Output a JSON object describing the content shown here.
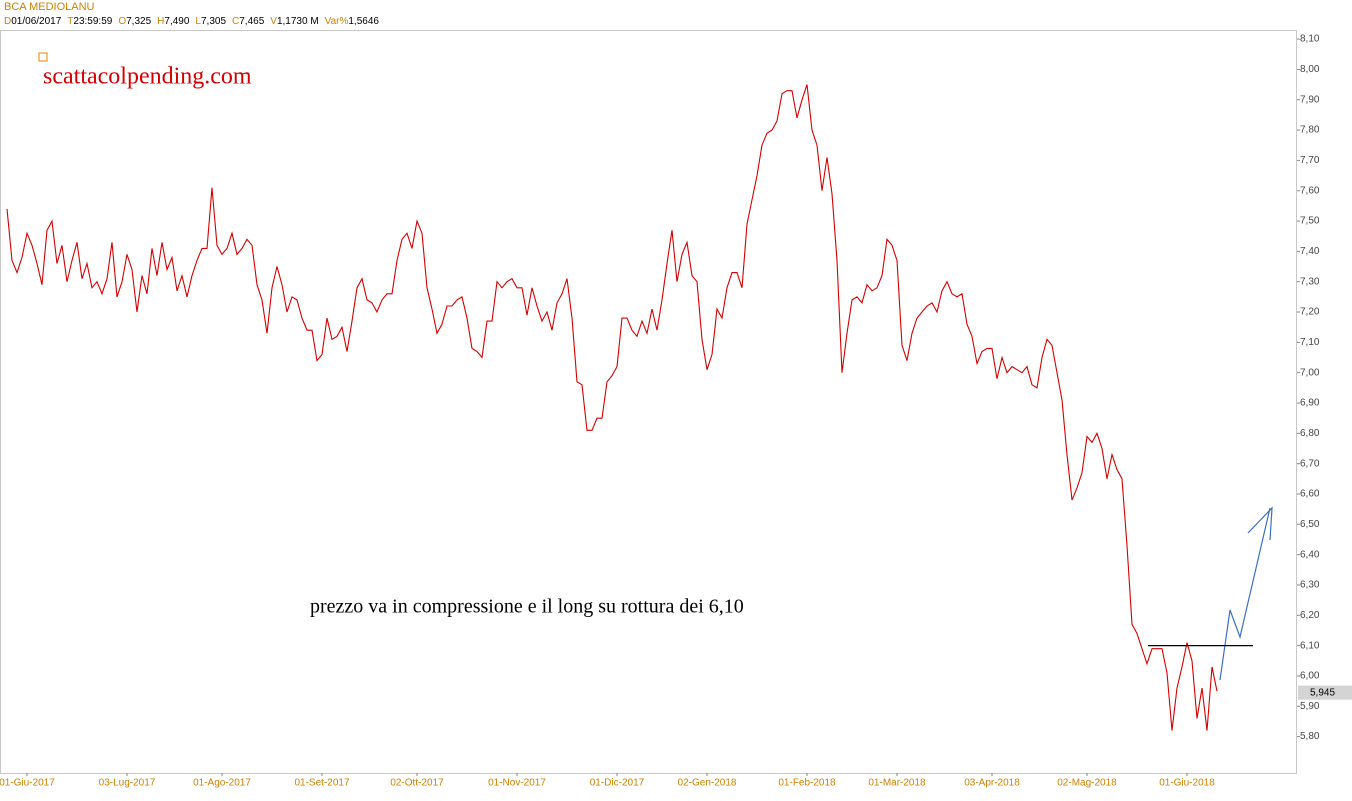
{
  "chart_data": {
    "type": "line",
    "title": "BCA MEDIOLANU",
    "info": [
      {
        "key": "D",
        "value": "01/06/2017"
      },
      {
        "key": "T",
        "value": "23:59:59"
      },
      {
        "key": "O",
        "value": "7,325"
      },
      {
        "key": "H",
        "value": "7,490"
      },
      {
        "key": "L",
        "value": "7,305"
      },
      {
        "key": "C",
        "value": "7,465"
      },
      {
        "key": "V",
        "value": "1,1730 M"
      },
      {
        "key": "Var%",
        "value": "1,5646"
      }
    ],
    "watermark": "scattacolpending.com",
    "annotation": "prezzo va in compressione e il long su rottura dei 6,10",
    "level_line": 6.1,
    "last_value": {
      "value": 5.945,
      "label": "5,945"
    },
    "grid": false,
    "ylim": [
      5.68,
      8.13
    ],
    "yticks": [
      {
        "value": 5.8,
        "label": "5,80"
      },
      {
        "value": 5.9,
        "label": "5,90"
      },
      {
        "value": 6.0,
        "label": "6,00"
      },
      {
        "value": 6.1,
        "label": "6,10"
      },
      {
        "value": 6.2,
        "label": "6,20"
      },
      {
        "value": 6.3,
        "label": "6,30"
      },
      {
        "value": 6.4,
        "label": "6,40"
      },
      {
        "value": 6.5,
        "label": "6,50"
      },
      {
        "value": 6.6,
        "label": "6,60"
      },
      {
        "value": 6.7,
        "label": "6,70"
      },
      {
        "value": 6.8,
        "label": "6,80"
      },
      {
        "value": 6.9,
        "label": "6,90"
      },
      {
        "value": 7.0,
        "label": "7,00"
      },
      {
        "value": 7.1,
        "label": "7,10"
      },
      {
        "value": 7.2,
        "label": "7,20"
      },
      {
        "value": 7.3,
        "label": "7,30"
      },
      {
        "value": 7.4,
        "label": "7,40"
      },
      {
        "value": 7.5,
        "label": "7,50"
      },
      {
        "value": 7.6,
        "label": "7,60"
      },
      {
        "value": 7.7,
        "label": "7,70"
      },
      {
        "value": 7.8,
        "label": "7,80"
      },
      {
        "value": 7.9,
        "label": "7,90"
      },
      {
        "value": 8.0,
        "label": "8,00"
      },
      {
        "value": 8.1,
        "label": "8,10"
      }
    ],
    "categories": [
      null,
      null,
      null,
      null,
      "01-Giu-2017",
      null,
      null,
      null,
      null,
      null,
      null,
      null,
      null,
      null,
      null,
      null,
      null,
      null,
      null,
      null,
      null,
      null,
      null,
      null,
      "03-Lug-2017",
      null,
      null,
      null,
      null,
      null,
      null,
      null,
      null,
      null,
      null,
      null,
      null,
      null,
      null,
      null,
      null,
      null,
      null,
      "01-Ago-2017",
      null,
      null,
      null,
      null,
      null,
      null,
      null,
      null,
      null,
      null,
      null,
      null,
      null,
      null,
      null,
      null,
      null,
      null,
      null,
      "01-Set-2017",
      null,
      null,
      null,
      null,
      null,
      null,
      null,
      null,
      null,
      null,
      null,
      null,
      null,
      null,
      null,
      null,
      null,
      null,
      "02-Ott-2017",
      null,
      null,
      null,
      null,
      null,
      null,
      null,
      null,
      null,
      null,
      null,
      null,
      null,
      null,
      null,
      null,
      null,
      null,
      null,
      "01-Nov-2017",
      null,
      null,
      null,
      null,
      null,
      null,
      null,
      null,
      null,
      null,
      null,
      null,
      null,
      null,
      null,
      null,
      null,
      null,
      null,
      "01-Dic-2017",
      null,
      null,
      null,
      null,
      null,
      null,
      null,
      null,
      null,
      null,
      null,
      null,
      null,
      null,
      null,
      null,
      null,
      "02-Gen-2018",
      null,
      null,
      null,
      null,
      null,
      null,
      null,
      null,
      null,
      null,
      null,
      null,
      null,
      null,
      null,
      null,
      null,
      null,
      null,
      "01-Feb-2018",
      null,
      null,
      null,
      null,
      null,
      null,
      null,
      null,
      null,
      null,
      null,
      null,
      null,
      null,
      null,
      null,
      null,
      "01-Mar-2018",
      null,
      null,
      null,
      null,
      null,
      null,
      null,
      null,
      null,
      null,
      null,
      null,
      null,
      null,
      null,
      null,
      null,
      null,
      "03-Apr-2018",
      null,
      null,
      null,
      null,
      null,
      null,
      null,
      null,
      null,
      null,
      null,
      null,
      null,
      null,
      null,
      null,
      null,
      null,
      "02-Mag-2018",
      null,
      null,
      null,
      null,
      null,
      null,
      null,
      null,
      null,
      null,
      null,
      null,
      null,
      null,
      null,
      null,
      null,
      null,
      null,
      "01-Giu-2018",
      null,
      null,
      null,
      null,
      null,
      null
    ],
    "series": [
      {
        "color": "#d40000",
        "values": [
          7.54,
          7.37,
          7.33,
          7.38,
          7.46,
          7.42,
          7.36,
          7.29,
          7.47,
          7.5,
          7.36,
          7.42,
          7.3,
          7.37,
          7.43,
          7.31,
          7.36,
          7.28,
          7.3,
          7.26,
          7.31,
          7.43,
          7.25,
          7.3,
          7.39,
          7.34,
          7.2,
          7.32,
          7.26,
          7.41,
          7.32,
          7.43,
          7.34,
          7.38,
          7.27,
          7.32,
          7.25,
          7.32,
          7.37,
          7.41,
          7.41,
          7.61,
          7.42,
          7.39,
          7.41,
          7.46,
          7.39,
          7.41,
          7.44,
          7.42,
          7.29,
          7.24,
          7.13,
          7.28,
          7.35,
          7.29,
          7.2,
          7.25,
          7.24,
          7.18,
          7.14,
          7.14,
          7.04,
          7.06,
          7.18,
          7.11,
          7.12,
          7.15,
          7.07,
          7.17,
          7.28,
          7.31,
          7.24,
          7.23,
          7.2,
          7.24,
          7.26,
          7.26,
          7.37,
          7.44,
          7.46,
          7.41,
          7.5,
          7.46,
          7.28,
          7.21,
          7.13,
          7.16,
          7.22,
          7.22,
          7.24,
          7.25,
          7.18,
          7.08,
          7.07,
          7.05,
          7.17,
          7.17,
          7.3,
          7.28,
          7.3,
          7.31,
          7.28,
          7.28,
          7.19,
          7.28,
          7.22,
          7.17,
          7.2,
          7.14,
          7.23,
          7.26,
          7.31,
          7.18,
          6.97,
          6.96,
          6.81,
          6.81,
          6.85,
          6.85,
          6.97,
          6.99,
          7.02,
          7.18,
          7.18,
          7.14,
          7.12,
          7.17,
          7.13,
          7.21,
          7.14,
          7.24,
          7.36,
          7.47,
          7.3,
          7.39,
          7.43,
          7.32,
          7.3,
          7.11,
          7.01,
          7.06,
          7.21,
          7.18,
          7.28,
          7.33,
          7.33,
          7.28,
          7.49,
          7.57,
          7.65,
          7.75,
          7.79,
          7.8,
          7.83,
          7.92,
          7.93,
          7.93,
          7.84,
          7.9,
          7.95,
          7.8,
          7.75,
          7.6,
          7.71,
          7.59,
          7.37,
          7.0,
          7.13,
          7.24,
          7.25,
          7.23,
          7.29,
          7.27,
          7.28,
          7.32,
          7.44,
          7.42,
          7.37,
          7.09,
          7.04,
          7.13,
          7.18,
          7.2,
          7.22,
          7.23,
          7.2,
          7.27,
          7.3,
          7.26,
          7.25,
          7.26,
          7.16,
          7.12,
          7.03,
          7.07,
          7.08,
          7.08,
          6.98,
          7.05,
          7.0,
          7.02,
          7.01,
          7.0,
          7.02,
          6.96,
          6.95,
          7.05,
          7.11,
          7.09,
          7.0,
          6.91,
          6.73,
          6.58,
          6.62,
          6.67,
          6.79,
          6.77,
          6.8,
          6.75,
          6.65,
          6.73,
          6.68,
          6.65,
          6.43,
          6.17,
          6.14,
          6.09,
          6.04,
          6.09,
          6.09,
          6.09,
          6.01,
          5.82,
          5.96,
          6.03,
          6.11,
          6.05,
          5.86,
          5.96,
          5.82,
          6.03,
          5.95
        ]
      }
    ]
  }
}
